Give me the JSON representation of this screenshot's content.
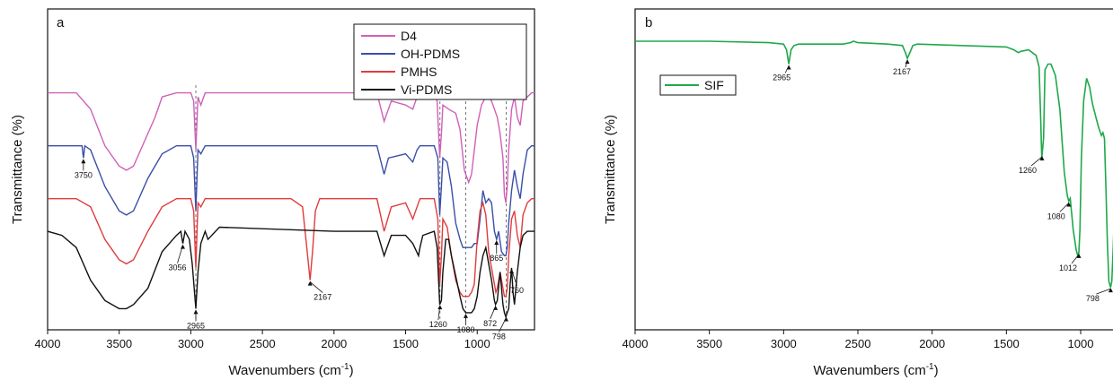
{
  "chart_data": [
    {
      "panel": "a",
      "type": "line",
      "xlabel": "Wavenumbers (cm",
      "xlabel_sup": "-1",
      "xlabel_tail": ")",
      "ylabel": "Transmittance (%)",
      "xlim": [
        4000,
        600
      ],
      "x_ticks": [
        4000,
        3500,
        3000,
        2500,
        2000,
        1500,
        1000
      ],
      "y_ticks": false,
      "grid": false,
      "legend_position": "top-right",
      "series": [
        {
          "name": "D4",
          "color": "#d060b8",
          "x": [
            4000,
            3800,
            3700,
            3600,
            3500,
            3450,
            3400,
            3300,
            3250,
            3200,
            3100,
            3000,
            2980,
            2965,
            2950,
            2930,
            2900,
            2800,
            2000,
            1700,
            1650,
            1600,
            1500,
            1450,
            1420,
            1400,
            1300,
            1280,
            1262,
            1250,
            1240,
            1200,
            1150,
            1120,
            1090,
            1060,
            1040,
            1000,
            970,
            940,
            920,
            900,
            880,
            860,
            840,
            820,
            810,
            800,
            790,
            780,
            760,
            740,
            720,
            700,
            680,
            650,
            620,
            600
          ],
          "y": [
            0.56,
            0.56,
            0.52,
            0.43,
            0.38,
            0.37,
            0.38,
            0.46,
            0.5,
            0.55,
            0.56,
            0.56,
            0.54,
            0.42,
            0.55,
            0.53,
            0.56,
            0.56,
            0.56,
            0.56,
            0.49,
            0.54,
            0.53,
            0.52,
            0.55,
            0.56,
            0.56,
            0.54,
            0.4,
            0.46,
            0.53,
            0.52,
            0.51,
            0.47,
            0.37,
            0.34,
            0.36,
            0.48,
            0.53,
            0.55,
            0.55,
            0.54,
            0.52,
            0.5,
            0.46,
            0.4,
            0.31,
            0.29,
            0.33,
            0.42,
            0.52,
            0.55,
            0.5,
            0.48,
            0.54,
            0.55,
            0.56,
            0.56
          ]
        },
        {
          "name": "OH-PDMS",
          "color": "#3a4fa8",
          "x": [
            4000,
            3800,
            3760,
            3750,
            3740,
            3700,
            3600,
            3500,
            3450,
            3400,
            3300,
            3200,
            3100,
            3000,
            2980,
            2965,
            2950,
            2930,
            2900,
            2800,
            2000,
            1700,
            1650,
            1620,
            1500,
            1450,
            1420,
            1400,
            1300,
            1275,
            1262,
            1250,
            1240,
            1210,
            1180,
            1150,
            1120,
            1100,
            1080,
            1060,
            1040,
            1020,
            1000,
            980,
            960,
            940,
            920,
            900,
            880,
            865,
            850,
            830,
            810,
            800,
            790,
            780,
            760,
            740,
            720,
            700,
            680,
            650,
            620,
            600
          ],
          "y": [
            0.43,
            0.43,
            0.43,
            0.4,
            0.43,
            0.42,
            0.33,
            0.27,
            0.26,
            0.27,
            0.35,
            0.41,
            0.43,
            0.43,
            0.4,
            0.27,
            0.42,
            0.41,
            0.43,
            0.43,
            0.43,
            0.43,
            0.36,
            0.4,
            0.41,
            0.39,
            0.42,
            0.43,
            0.43,
            0.4,
            0.26,
            0.33,
            0.4,
            0.39,
            0.33,
            0.24,
            0.2,
            0.18,
            0.18,
            0.18,
            0.18,
            0.19,
            0.19,
            0.25,
            0.32,
            0.29,
            0.3,
            0.29,
            0.22,
            0.2,
            0.22,
            0.17,
            0.16,
            0.16,
            0.18,
            0.24,
            0.32,
            0.37,
            0.33,
            0.3,
            0.36,
            0.42,
            0.43,
            0.43
          ]
        },
        {
          "name": "PMHS",
          "color": "#e03c3c",
          "x": [
            4000,
            3800,
            3700,
            3600,
            3500,
            3450,
            3400,
            3300,
            3200,
            3100,
            3000,
            2980,
            2965,
            2950,
            2930,
            2900,
            2800,
            2300,
            2220,
            2190,
            2167,
            2150,
            2130,
            2100,
            2000,
            1800,
            1700,
            1650,
            1600,
            1500,
            1450,
            1420,
            1400,
            1300,
            1275,
            1262,
            1250,
            1240,
            1210,
            1180,
            1150,
            1120,
            1100,
            1080,
            1060,
            1040,
            1020,
            1000,
            980,
            960,
            940,
            920,
            900,
            880,
            870,
            860,
            840,
            820,
            810,
            800,
            790,
            780,
            760,
            740,
            720,
            700,
            680,
            650,
            620,
            600
          ],
          "y": [
            0.3,
            0.3,
            0.28,
            0.2,
            0.15,
            0.14,
            0.15,
            0.22,
            0.28,
            0.3,
            0.3,
            0.27,
            0.13,
            0.29,
            0.28,
            0.3,
            0.3,
            0.3,
            0.28,
            0.18,
            0.1,
            0.17,
            0.27,
            0.3,
            0.3,
            0.3,
            0.3,
            0.22,
            0.28,
            0.29,
            0.25,
            0.28,
            0.3,
            0.3,
            0.25,
            0.09,
            0.16,
            0.25,
            0.23,
            0.16,
            0.1,
            0.07,
            0.06,
            0.06,
            0.06,
            0.07,
            0.09,
            0.2,
            0.27,
            0.29,
            0.26,
            0.17,
            0.13,
            0.09,
            0.07,
            0.08,
            0.12,
            0.08,
            0.06,
            0.06,
            0.08,
            0.16,
            0.25,
            0.27,
            0.21,
            0.18,
            0.26,
            0.29,
            0.3,
            0.3
          ]
        },
        {
          "name": "Vi-PDMS",
          "color": "#111111",
          "x": [
            4000,
            3900,
            3800,
            3700,
            3600,
            3500,
            3450,
            3400,
            3300,
            3200,
            3100,
            3070,
            3056,
            3040,
            3010,
            2990,
            2965,
            2950,
            2930,
            2900,
            2880,
            2800,
            2000,
            1800,
            1700,
            1650,
            1600,
            1500,
            1450,
            1410,
            1400,
            1380,
            1300,
            1280,
            1262,
            1250,
            1240,
            1220,
            1200,
            1180,
            1150,
            1120,
            1100,
            1080,
            1060,
            1040,
            1020,
            1000,
            980,
            960,
            940,
            920,
            900,
            880,
            872,
            860,
            840,
            820,
            810,
            800,
            790,
            780,
            770,
            760,
            750,
            740,
            720,
            700,
            680,
            650,
            620,
            600
          ],
          "y": [
            0.22,
            0.21,
            0.18,
            0.1,
            0.05,
            0.03,
            0.03,
            0.04,
            0.08,
            0.17,
            0.21,
            0.22,
            0.19,
            0.22,
            0.2,
            0.14,
            0.03,
            0.12,
            0.19,
            0.22,
            0.2,
            0.23,
            0.22,
            0.22,
            0.22,
            0.16,
            0.21,
            0.21,
            0.19,
            0.16,
            0.18,
            0.21,
            0.22,
            0.18,
            0.04,
            0.05,
            0.12,
            0.2,
            0.2,
            0.16,
            0.11,
            0.06,
            0.03,
            0.02,
            0.02,
            0.02,
            0.03,
            0.06,
            0.12,
            0.16,
            0.18,
            0.14,
            0.1,
            0.05,
            0.04,
            0.05,
            0.12,
            0.04,
            0.02,
            0.01,
            0.02,
            0.03,
            0.09,
            0.13,
            0.07,
            0.04,
            0.12,
            0.18,
            0.21,
            0.22,
            0.22,
            0.22
          ]
        }
      ],
      "guide_lines_x": [
        2965,
        1260,
        1080,
        798
      ],
      "annotations": [
        {
          "text": "3750",
          "x": 3750
        },
        {
          "text": "3056",
          "x": 3056
        },
        {
          "text": "2965",
          "x": 2965
        },
        {
          "text": "2167",
          "x": 2167
        },
        {
          "text": "1260",
          "x": 1260
        },
        {
          "text": "1080",
          "x": 1080
        },
        {
          "text": "865",
          "x": 865
        },
        {
          "text": "872",
          "x": 872
        },
        {
          "text": "798",
          "x": 798
        },
        {
          "text": "760",
          "x": 760
        }
      ]
    },
    {
      "panel": "b",
      "type": "line",
      "xlabel": "Wavenumbers (cm",
      "xlabel_sup": "-1",
      "xlabel_tail": ")",
      "ylabel": "Transmittance (%)",
      "xlim": [
        4000,
        600
      ],
      "x_ticks": [
        4000,
        3500,
        3000,
        2500,
        2000,
        1500,
        1000
      ],
      "y_ticks": false,
      "grid": false,
      "legend_position": "top-left",
      "series": [
        {
          "name": "SIF",
          "color": "#1fa84a",
          "x": [
            4000,
            3500,
            3100,
            3000,
            2980,
            2965,
            2950,
            2930,
            2900,
            2600,
            2550,
            2530,
            2500,
            2300,
            2200,
            2180,
            2167,
            2150,
            2130,
            2100,
            1800,
            1500,
            1450,
            1420,
            1400,
            1350,
            1300,
            1280,
            1270,
            1262,
            1250,
            1240,
            1220,
            1200,
            1170,
            1140,
            1110,
            1090,
            1080,
            1070,
            1050,
            1030,
            1020,
            1012,
            1005,
            995,
            980,
            960,
            940,
            920,
            900,
            880,
            860,
            850,
            840,
            830,
            820,
            810,
            800,
            798,
            790,
            780,
            770,
            760,
            750,
            740,
            720,
            700,
            680,
            650,
            620,
            600
          ],
          "y": [
            0.96,
            0.96,
            0.955,
            0.95,
            0.93,
            0.88,
            0.93,
            0.945,
            0.95,
            0.95,
            0.955,
            0.96,
            0.955,
            0.95,
            0.945,
            0.92,
            0.9,
            0.92,
            0.945,
            0.95,
            0.945,
            0.94,
            0.93,
            0.92,
            0.925,
            0.93,
            0.91,
            0.87,
            0.7,
            0.55,
            0.62,
            0.86,
            0.88,
            0.88,
            0.84,
            0.72,
            0.5,
            0.42,
            0.4,
            0.41,
            0.3,
            0.23,
            0.21,
            0.22,
            0.3,
            0.55,
            0.75,
            0.83,
            0.8,
            0.74,
            0.7,
            0.66,
            0.63,
            0.64,
            0.62,
            0.45,
            0.25,
            0.12,
            0.1,
            0.1,
            0.12,
            0.25,
            0.4,
            0.55,
            0.62,
            0.64,
            0.64,
            0.62,
            0.58,
            0.6,
            0.62,
            0.63
          ]
        }
      ],
      "annotations": [
        {
          "text": "2965",
          "x": 2965
        },
        {
          "text": "2167",
          "x": 2167
        },
        {
          "text": "1260",
          "x": 1260
        },
        {
          "text": "1080",
          "x": 1080
        },
        {
          "text": "1012",
          "x": 1012
        },
        {
          "text": "798",
          "x": 798
        }
      ]
    }
  ]
}
